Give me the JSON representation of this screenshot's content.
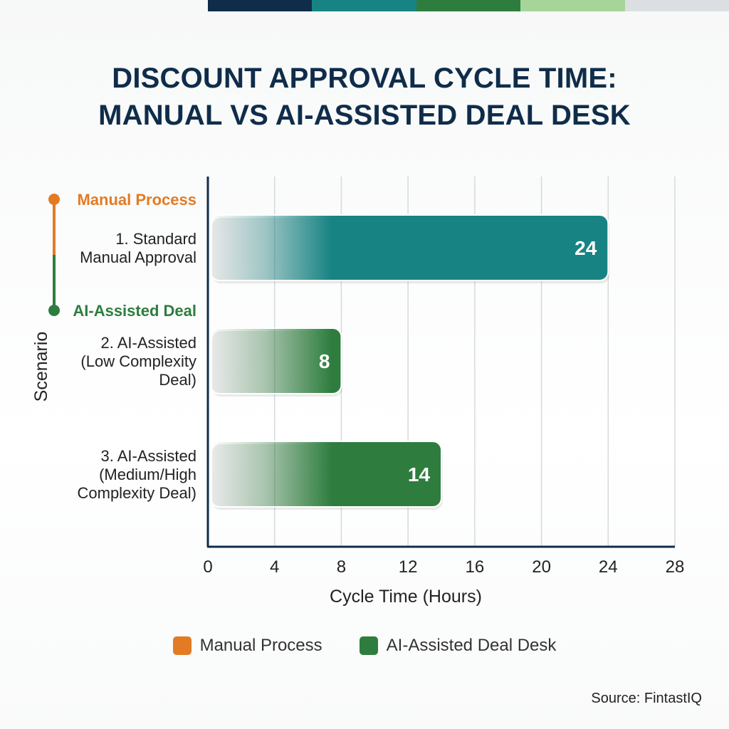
{
  "header": {
    "title_line1": "DISCOUNT APPROVAL CYCLE TIME:",
    "title_line2": "MANUAL VS AI-ASSISTED DEAL DESK",
    "stripe_colors": [
      "#0f2d4a",
      "#178383",
      "#2e7d3e",
      "#a6d59a",
      "#dcdfe1"
    ]
  },
  "chart_data": {
    "type": "bar",
    "orientation": "horizontal",
    "xlabel": "Cycle Time (Hours)",
    "ylabel": "Scenario",
    "xlim": [
      0,
      28
    ],
    "xticks": [
      0,
      4,
      8,
      12,
      16,
      20,
      24,
      28
    ],
    "grid": true,
    "groups": [
      {
        "label": "Manual Process",
        "color": "#e27b24",
        "category_indices": [
          0
        ]
      },
      {
        "label": "AI-Assisted Deal",
        "color": "#2e7d3e",
        "category_indices": [
          1,
          2
        ]
      }
    ],
    "categories": [
      {
        "lines": [
          "1. Standard",
          "Manual Approval"
        ]
      },
      {
        "lines": [
          "2. AI-Assisted",
          "(Low Complexity",
          "Deal)"
        ]
      },
      {
        "lines": [
          "3. AI-Assisted",
          "(Medium/High",
          "Complexity Deal)"
        ]
      }
    ],
    "values": [
      24,
      8,
      14
    ],
    "bar_colors": [
      "#178383",
      "#2e7d3e",
      "#2e7d3e"
    ],
    "data_labels": [
      "24",
      "8",
      "14"
    ],
    "legend": [
      {
        "label": "Manual Process",
        "color": "#e27b24"
      },
      {
        "label": "AI-Assisted Deal Desk",
        "color": "#2e7d3e"
      }
    ],
    "legend_position": "bottom"
  },
  "source": "Source: FintastIQ"
}
